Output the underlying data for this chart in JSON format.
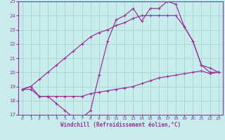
{
  "background_color": "#c8ecec",
  "grid_color": "#a8d4d4",
  "line_color": "#993399",
  "xlabel": "Windchill (Refroidissement éolien,°C)",
  "xlim": [
    -0.5,
    23.5
  ],
  "ylim": [
    17,
    25
  ],
  "x_ticks": [
    0,
    1,
    2,
    3,
    4,
    5,
    6,
    7,
    8,
    9,
    10,
    11,
    12,
    13,
    14,
    15,
    16,
    17,
    18,
    19,
    20,
    21,
    22,
    23
  ],
  "y_ticks": [
    17,
    18,
    19,
    20,
    21,
    22,
    23,
    24,
    25
  ],
  "line1_x": [
    0,
    1,
    2,
    3,
    4,
    5,
    6,
    7,
    8,
    9,
    10,
    11,
    12,
    13,
    14,
    15,
    16,
    17,
    18,
    19,
    20,
    21,
    22,
    23
  ],
  "line1_y": [
    18.8,
    19.0,
    18.3,
    18.3,
    17.8,
    17.3,
    16.8,
    16.8,
    17.3,
    19.8,
    22.2,
    23.7,
    24.0,
    24.5,
    23.6,
    24.5,
    24.5,
    25.0,
    24.8,
    23.2,
    22.2,
    20.5,
    20.0,
    20.0
  ],
  "line2_x": [
    0,
    1,
    2,
    3,
    4,
    5,
    6,
    7,
    8,
    9,
    10,
    11,
    12,
    13,
    14,
    15,
    16,
    17,
    18,
    19,
    20,
    21,
    22,
    23
  ],
  "line2_y": [
    18.8,
    18.8,
    18.3,
    18.3,
    18.3,
    18.3,
    18.3,
    18.3,
    18.5,
    18.6,
    18.7,
    18.8,
    18.9,
    19.0,
    19.2,
    19.4,
    19.6,
    19.7,
    19.8,
    19.9,
    20.0,
    20.1,
    19.9,
    20.0
  ],
  "line3_x": [
    0,
    1,
    2,
    3,
    4,
    5,
    6,
    7,
    8,
    9,
    10,
    11,
    12,
    13,
    14,
    15,
    16,
    17,
    18,
    19,
    20,
    21,
    22,
    23
  ],
  "line3_y": [
    18.8,
    19.0,
    19.5,
    20.0,
    20.5,
    21.0,
    21.5,
    22.0,
    22.5,
    22.8,
    23.0,
    23.3,
    23.5,
    23.8,
    24.0,
    24.0,
    24.0,
    24.0,
    24.0,
    23.2,
    22.2,
    20.5,
    20.3,
    20.0
  ]
}
